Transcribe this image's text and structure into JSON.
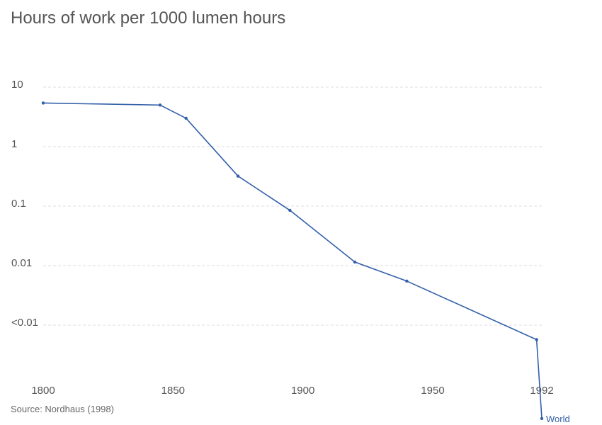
{
  "chart_data": {
    "type": "line",
    "title": "Hours of work per 1000 lumen hours",
    "x_scale": "linear",
    "y_scale": "log",
    "xlim": [
      1800,
      1992
    ],
    "x_ticks": [
      {
        "value": 1800,
        "label": "1800"
      },
      {
        "value": 1850,
        "label": "1850"
      },
      {
        "value": 1900,
        "label": "1900"
      },
      {
        "value": 1950,
        "label": "1950"
      },
      {
        "value": 1992,
        "label": "1992"
      }
    ],
    "y_ticks": [
      {
        "value": 10,
        "label": "10"
      },
      {
        "value": 1,
        "label": "1"
      },
      {
        "value": 0.1,
        "label": "0.1"
      },
      {
        "value": 0.01,
        "label": "0.01"
      },
      {
        "value": 0.001,
        "label": "<0.01"
      }
    ],
    "grid": true,
    "series": [
      {
        "name": "World",
        "color": "#3360a9",
        "x": [
          1800,
          1845,
          1855,
          1875,
          1895,
          1920,
          1940,
          1990,
          1992
        ],
        "values": [
          5.4,
          5.0,
          3.0,
          0.32,
          0.085,
          0.0115,
          0.0055,
          0.00057,
          2.7e-05
        ]
      }
    ]
  },
  "source": "Source: Nordhaus (1998)"
}
